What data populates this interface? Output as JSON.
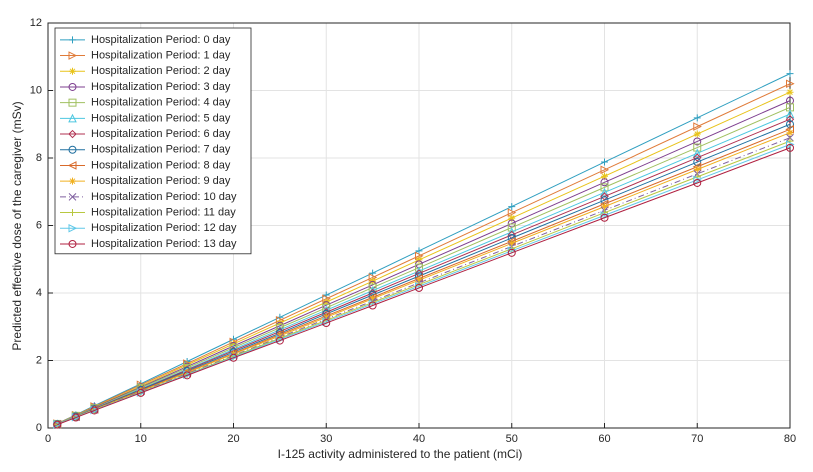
{
  "chart_data": {
    "type": "line",
    "xlabel": "I-125 activity administered to the patient (mCi)",
    "ylabel": "Predicted effective dose of the caregiver (mSv)",
    "x": [
      1,
      3,
      5,
      10,
      15,
      20,
      25,
      30,
      35,
      40,
      50,
      60,
      70,
      80
    ],
    "xlim": [
      0,
      80
    ],
    "xticks": [
      0,
      10,
      20,
      30,
      40,
      50,
      60,
      70,
      80
    ],
    "ylim": [
      0,
      12
    ],
    "yticks": [
      0,
      2,
      4,
      6,
      8,
      10,
      12
    ],
    "grid": true,
    "legend": "upper left",
    "series": [
      {
        "name": "Hospitalization Period: 0 day",
        "color": "#2f9fc0",
        "marker": "plus",
        "values": [
          0.13,
          0.39,
          0.66,
          1.31,
          1.97,
          2.63,
          3.28,
          3.94,
          4.59,
          5.25,
          6.56,
          7.88,
          9.19,
          10.5
        ]
      },
      {
        "name": "Hospitalization Period: 1 day",
        "color": "#e07b39",
        "marker": "triangle-right",
        "values": [
          0.13,
          0.38,
          0.64,
          1.28,
          1.91,
          2.55,
          3.19,
          3.83,
          4.46,
          5.1,
          6.38,
          7.65,
          8.93,
          10.2
        ]
      },
      {
        "name": "Hospitalization Period: 2 day",
        "color": "#e8c31a",
        "marker": "star",
        "values": [
          0.12,
          0.37,
          0.62,
          1.24,
          1.87,
          2.49,
          3.11,
          3.73,
          4.35,
          4.98,
          6.22,
          7.46,
          8.71,
          9.95
        ]
      },
      {
        "name": "Hospitalization Period: 3 day",
        "color": "#7e3f8f",
        "marker": "circle",
        "values": [
          0.12,
          0.36,
          0.61,
          1.21,
          1.82,
          2.43,
          3.03,
          3.64,
          4.24,
          4.85,
          6.06,
          7.28,
          8.49,
          9.7
        ]
      },
      {
        "name": "Hospitalization Period: 4 day",
        "color": "#a0c060",
        "marker": "square",
        "values": [
          0.12,
          0.36,
          0.59,
          1.19,
          1.78,
          2.38,
          2.97,
          3.56,
          4.16,
          4.75,
          5.94,
          7.13,
          8.31,
          9.5
        ]
      },
      {
        "name": "Hospitalization Period: 5 day",
        "color": "#4dc7e0",
        "marker": "triangle-up",
        "values": [
          0.12,
          0.35,
          0.58,
          1.16,
          1.74,
          2.33,
          2.91,
          3.49,
          4.07,
          4.65,
          5.81,
          6.98,
          8.14,
          9.3
        ]
      },
      {
        "name": "Hospitalization Period: 6 day",
        "color": "#b03050",
        "marker": "diamond",
        "values": [
          0.11,
          0.34,
          0.57,
          1.14,
          1.72,
          2.29,
          2.86,
          3.43,
          4.0,
          4.58,
          5.72,
          6.86,
          8.01,
          9.15
        ]
      },
      {
        "name": "Hospitalization Period: 7 day",
        "color": "#2070a0",
        "marker": "circle",
        "values": [
          0.11,
          0.34,
          0.56,
          1.13,
          1.69,
          2.25,
          2.81,
          3.38,
          3.94,
          4.5,
          5.63,
          6.75,
          7.88,
          9.0
        ]
      },
      {
        "name": "Hospitalization Period: 8 day",
        "color": "#d96a2a",
        "marker": "triangle-left",
        "values": [
          0.11,
          0.33,
          0.55,
          1.11,
          1.66,
          2.21,
          2.77,
          3.32,
          3.87,
          4.43,
          5.53,
          6.64,
          7.74,
          8.85
        ]
      },
      {
        "name": "Hospitalization Period: 9 day",
        "color": "#f0b020",
        "marker": "star",
        "values": [
          0.11,
          0.33,
          0.55,
          1.09,
          1.64,
          2.19,
          2.73,
          3.28,
          3.83,
          4.38,
          5.47,
          6.56,
          7.66,
          8.75
        ]
      },
      {
        "name": "Hospitalization Period: 10 day",
        "color": "#8060a0",
        "marker": "cross",
        "linestyle": "dashdot",
        "values": [
          0.11,
          0.32,
          0.54,
          1.08,
          1.61,
          2.15,
          2.69,
          3.23,
          3.76,
          4.3,
          5.38,
          6.45,
          7.53,
          8.6
        ]
      },
      {
        "name": "Hospitalization Period: 11 day",
        "color": "#b8c840",
        "marker": "plus",
        "values": [
          0.11,
          0.32,
          0.53,
          1.06,
          1.59,
          2.13,
          2.66,
          3.19,
          3.72,
          4.25,
          5.31,
          6.38,
          7.44,
          8.5
        ]
      },
      {
        "name": "Hospitalization Period: 12 day",
        "color": "#60c8e8",
        "marker": "triangle-right",
        "values": [
          0.11,
          0.32,
          0.53,
          1.05,
          1.58,
          2.1,
          2.63,
          3.15,
          3.68,
          4.2,
          5.25,
          6.3,
          7.35,
          8.4
        ]
      },
      {
        "name": "Hospitalization Period: 13 day",
        "color": "#b02040",
        "marker": "circle",
        "values": [
          0.1,
          0.31,
          0.52,
          1.04,
          1.56,
          2.08,
          2.59,
          3.11,
          3.63,
          4.15,
          5.19,
          6.23,
          7.26,
          8.3
        ]
      }
    ]
  }
}
